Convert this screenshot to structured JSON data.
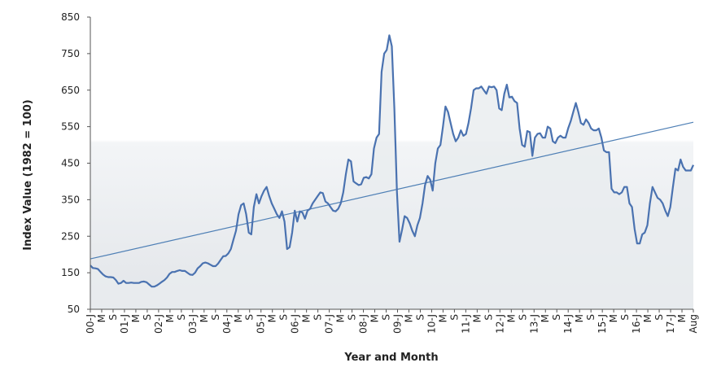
{
  "chart_data": {
    "type": "line",
    "title": "",
    "xlabel": "Year and Month",
    "ylabel": "Index Value (1982 = 100)",
    "ylim": [
      50,
      850
    ],
    "yticks": [
      50,
      150,
      250,
      350,
      450,
      550,
      650,
      750,
      850
    ],
    "grid": false,
    "legend": "none",
    "x_tick_labels": [
      "00-J",
      "M",
      "S",
      "01-J",
      "M",
      "S",
      "02-J",
      "M",
      "S",
      "03-J",
      "M",
      "S",
      "04-J",
      "M",
      "S",
      "05-J",
      "M",
      "S",
      "06-J",
      "M",
      "S",
      "07-J",
      "M",
      "S",
      "08-J",
      "M",
      "S",
      "09-J",
      "M",
      "S",
      "10-J",
      "M",
      "S",
      "11-J",
      "M",
      "S",
      "12-J",
      "M",
      "S",
      "13-J",
      "M",
      "S",
      "14-J",
      "M",
      "S",
      "15-J",
      "M",
      "S",
      "16-J",
      "M",
      "S",
      "17-J",
      "M",
      "Aug"
    ],
    "x_start": "2000-01",
    "x_end": "2017-08",
    "series": [
      {
        "values": [
          170,
          163,
          162,
          160,
          152,
          145,
          140,
          138,
          138,
          137,
          130,
          120,
          122,
          128,
          122,
          122,
          123,
          122,
          122,
          122,
          125,
          126,
          124,
          118,
          112,
          112,
          115,
          120,
          125,
          130,
          137,
          147,
          152,
          152,
          155,
          157,
          155,
          155,
          150,
          145,
          144,
          150,
          162,
          168,
          176,
          178,
          176,
          172,
          168,
          168,
          175,
          185,
          195,
          196,
          203,
          215,
          240,
          265,
          310,
          335,
          340,
          310,
          260,
          255,
          330,
          365,
          340,
          360,
          375,
          385,
          360,
          340,
          325,
          310,
          300,
          318,
          290,
          215,
          220,
          260,
          320,
          290,
          318,
          315,
          298,
          320,
          325,
          340,
          350,
          360,
          370,
          368,
          345,
          340,
          330,
          320,
          318,
          325,
          340,
          370,
          420,
          460,
          455,
          400,
          395,
          390,
          392,
          410,
          412,
          408,
          420,
          490,
          520,
          530,
          700,
          750,
          760,
          800,
          770,
          600,
          370,
          235,
          268,
          305,
          300,
          285,
          265,
          250,
          280,
          300,
          340,
          390,
          415,
          405,
          375,
          450,
          490,
          500,
          550,
          605,
          590,
          560,
          530,
          510,
          520,
          540,
          525,
          530,
          560,
          600,
          650,
          655,
          655,
          660,
          650,
          640,
          660,
          658,
          660,
          650,
          600,
          595,
          640,
          665,
          630,
          632,
          620,
          615,
          545,
          500,
          495,
          538,
          535,
          470,
          520,
          530,
          532,
          520,
          520,
          550,
          545,
          510,
          505,
          520,
          525,
          520,
          520,
          545,
          565,
          590,
          615,
          590,
          560,
          555,
          570,
          560,
          545,
          540,
          540,
          545,
          520,
          485,
          480,
          480,
          380,
          370,
          370,
          365,
          370,
          385,
          385,
          340,
          330,
          270,
          230,
          230,
          255,
          260,
          280,
          340,
          385,
          370,
          355,
          350,
          340,
          320,
          305,
          330,
          385,
          435,
          430,
          460,
          440,
          430,
          430,
          430,
          445
        ]
      },
      {
        "values": [
          188,
          562
        ]
      }
    ],
    "colors": {
      "line": "#4a72b0",
      "trend": "#4e7fb5",
      "axis": "#555555",
      "fill_top": "#ffffff",
      "fill_bottom": "#e2e5e9"
    }
  }
}
